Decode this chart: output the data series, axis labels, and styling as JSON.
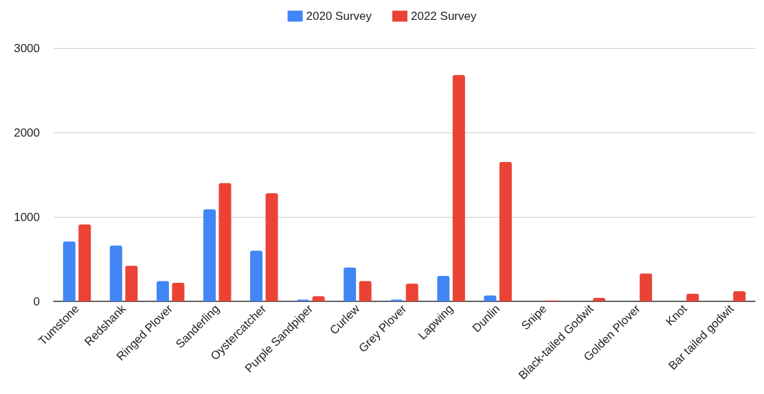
{
  "chart_data": {
    "type": "bar",
    "categories": [
      "Tumstone",
      "Redshank",
      "Ringed Plover",
      "Sanderling",
      "Oystercatcher",
      "Purple Sandpiper",
      "Curlew",
      "Grey Plover",
      "Lapwing",
      "Dunlin",
      "Snipe",
      "Black-tailed Godwit",
      "Golden Plover",
      "Knot",
      "Bar tailed godwit"
    ],
    "series": [
      {
        "name": "2020 Survey",
        "color": "#4285f4",
        "values": [
          710,
          660,
          240,
          1090,
          600,
          20,
          400,
          20,
          300,
          70,
          null,
          null,
          null,
          null,
          null
        ]
      },
      {
        "name": "2022 Survey",
        "color": "#ea4335",
        "values": [
          910,
          420,
          220,
          1400,
          1280,
          60,
          240,
          210,
          2680,
          1650,
          10,
          40,
          330,
          90,
          120
        ]
      }
    ],
    "ylim": [
      0,
      3000
    ],
    "yticks": [
      0,
      1000,
      2000,
      3000
    ],
    "grid": "y",
    "legend": "top"
  }
}
